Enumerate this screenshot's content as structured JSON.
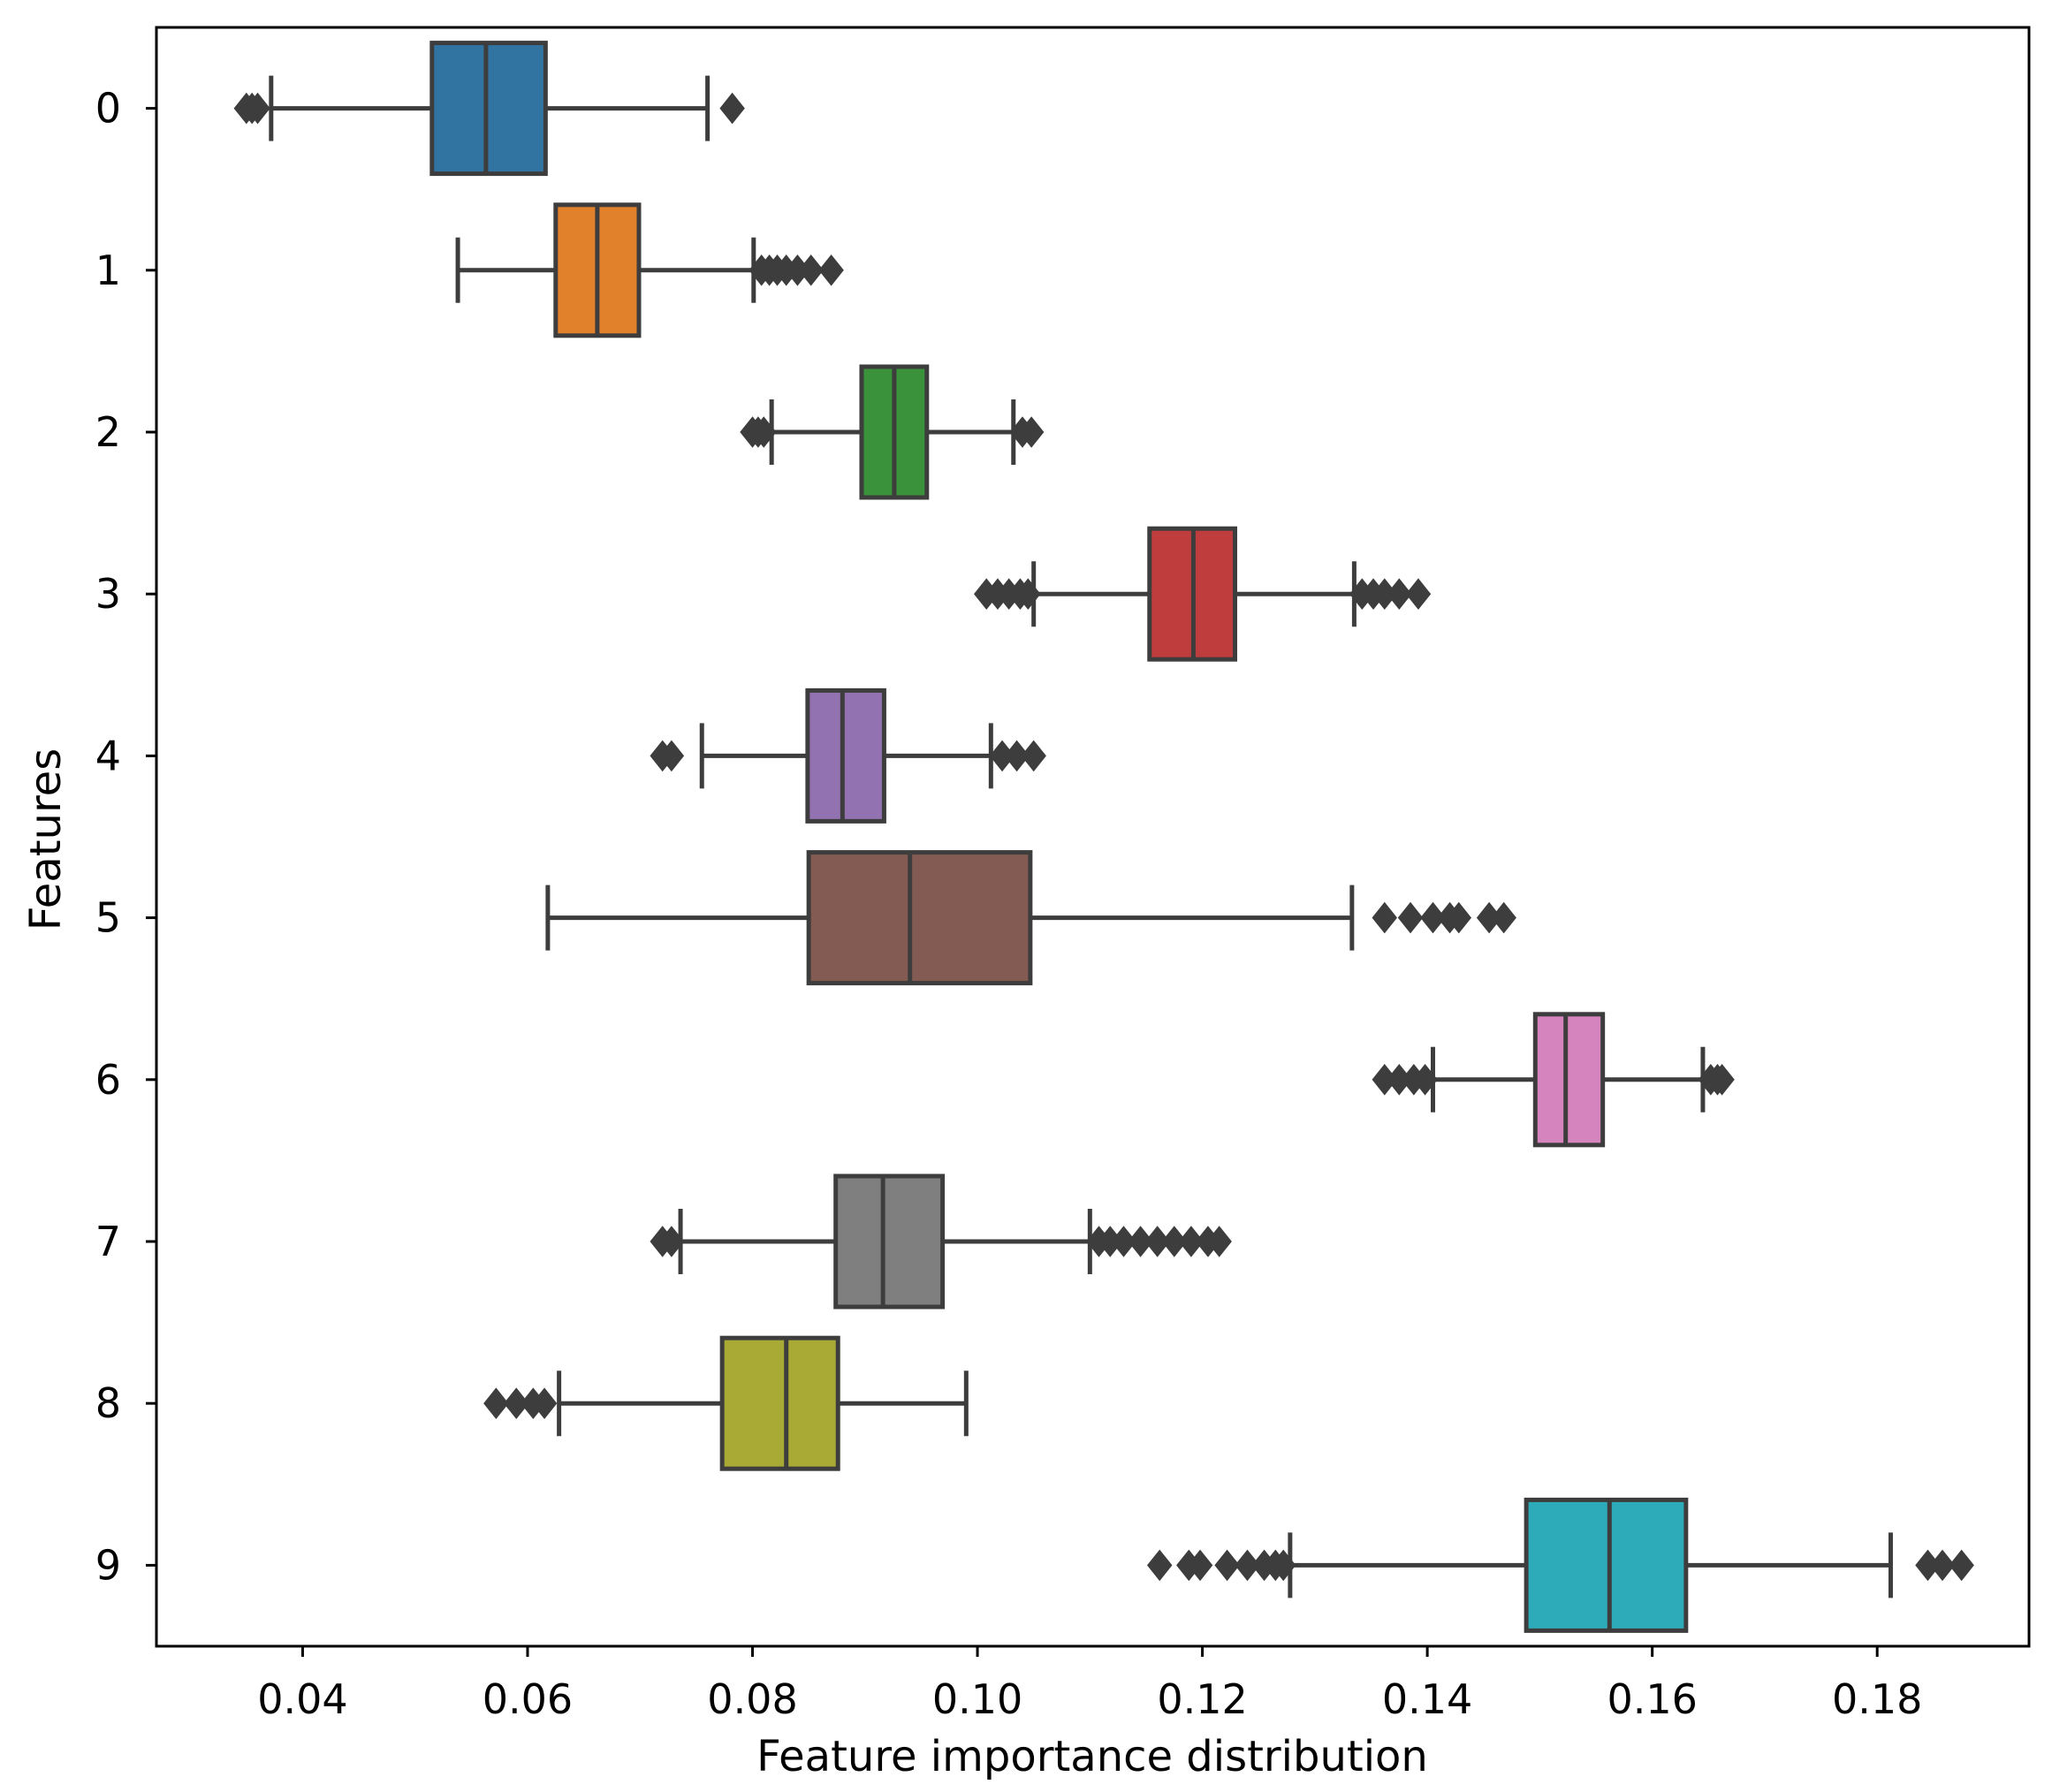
{
  "chart_data": {
    "type": "boxplot",
    "orientation": "horizontal",
    "title": "",
    "xlabel": "Feature importance distribution",
    "ylabel": "Features",
    "xlim": [
      0.027,
      0.1935
    ],
    "xticks": [
      0.04,
      0.06,
      0.08,
      0.1,
      0.12,
      0.14,
      0.16,
      0.18
    ],
    "xtick_labels": [
      "0.04",
      "0.06",
      "0.08",
      "0.10",
      "0.12",
      "0.14",
      "0.16",
      "0.18"
    ],
    "grid": false,
    "outlier_color": "#3d3d3d",
    "line_color": "#3d3d3d",
    "series": [
      {
        "name": "0",
        "color": "#3274a1",
        "whisker_low": 0.0372,
        "q1": 0.0515,
        "median": 0.0563,
        "q3": 0.0616,
        "whisker_high": 0.076,
        "outliers": [
          0.035,
          0.0355,
          0.036,
          0.0782
        ]
      },
      {
        "name": "1",
        "color": "#e1812c",
        "whisker_low": 0.0538,
        "q1": 0.0625,
        "median": 0.0662,
        "q3": 0.0699,
        "whisker_high": 0.0801,
        "outliers": [
          0.0808,
          0.0815,
          0.0822,
          0.083,
          0.084,
          0.0852,
          0.087
        ]
      },
      {
        "name": "2",
        "color": "#3a923a",
        "whisker_low": 0.0817,
        "q1": 0.0897,
        "median": 0.0926,
        "q3": 0.0955,
        "whisker_high": 0.1032,
        "outliers": [
          0.08,
          0.0805,
          0.081,
          0.104,
          0.1048
        ]
      },
      {
        "name": "3",
        "color": "#c03d3e",
        "whisker_low": 0.105,
        "q1": 0.1153,
        "median": 0.1192,
        "q3": 0.1229,
        "whisker_high": 0.1335,
        "outliers": [
          0.1008,
          0.1018,
          0.1028,
          0.1038,
          0.1045,
          0.1342,
          0.1352,
          0.1362,
          0.1375,
          0.1392
        ]
      },
      {
        "name": "4",
        "color": "#9372b2",
        "whisker_low": 0.0755,
        "q1": 0.0849,
        "median": 0.088,
        "q3": 0.0917,
        "whisker_high": 0.1012,
        "outliers": [
          0.072,
          0.0728,
          0.1022,
          0.1035,
          0.105
        ]
      },
      {
        "name": "5",
        "color": "#845b53",
        "whisker_low": 0.0618,
        "q1": 0.085,
        "median": 0.094,
        "q3": 0.1047,
        "whisker_high": 0.1333,
        "outliers": [
          0.1362,
          0.1385,
          0.1405,
          0.142,
          0.1428,
          0.1455,
          0.1468
        ]
      },
      {
        "name": "6",
        "color": "#d684bd",
        "whisker_low": 0.1405,
        "q1": 0.1496,
        "median": 0.1523,
        "q3": 0.1556,
        "whisker_high": 0.1645,
        "outliers": [
          0.1362,
          0.1375,
          0.1388,
          0.1398,
          0.1652,
          0.1658,
          0.1662
        ]
      },
      {
        "name": "7",
        "color": "#7f7f7f",
        "whisker_low": 0.0736,
        "q1": 0.0874,
        "median": 0.0916,
        "q3": 0.0969,
        "whisker_high": 0.11,
        "outliers": [
          0.072,
          0.0728,
          0.1108,
          0.1118,
          0.113,
          0.1145,
          0.116,
          0.1175,
          0.119,
          0.1205,
          0.1215
        ]
      },
      {
        "name": "8",
        "color": "#a9aa35",
        "whisker_low": 0.0628,
        "q1": 0.0773,
        "median": 0.083,
        "q3": 0.0876,
        "whisker_high": 0.099,
        "outliers": [
          0.0572,
          0.059,
          0.0605,
          0.0615
        ]
      },
      {
        "name": "9",
        "color": "#2eabb8",
        "whisker_low": 0.1278,
        "q1": 0.1488,
        "median": 0.1562,
        "q3": 0.163,
        "whisker_high": 0.1812,
        "outliers": [
          0.1162,
          0.1188,
          0.1198,
          0.1222,
          0.124,
          0.1255,
          0.1265,
          0.1272,
          0.1845,
          0.1858,
          0.1875
        ]
      }
    ]
  }
}
